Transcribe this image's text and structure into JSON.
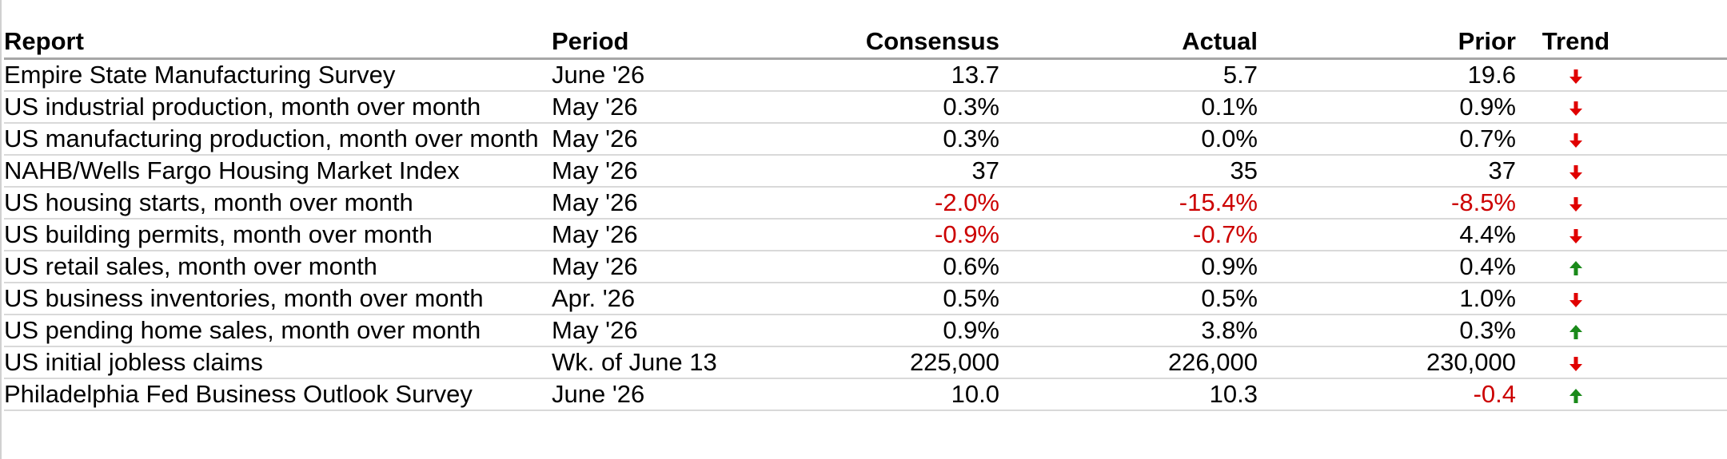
{
  "table": {
    "headers": {
      "report": "Report",
      "period": "Period",
      "consensus": "Consensus",
      "actual": "Actual",
      "prior": "Prior",
      "trend": "Trend"
    },
    "rows": [
      {
        "report": "Empire State Manufacturing Survey",
        "period": "June '26",
        "consensus": "13.7",
        "actual": "5.7",
        "prior": "19.6",
        "trend": "down"
      },
      {
        "report": "US industrial production, month over month",
        "period": "May '26",
        "consensus": "0.3%",
        "actual": "0.1%",
        "prior": "0.9%",
        "trend": "down"
      },
      {
        "report": "US manufacturing production, month over month",
        "period": "May '26",
        "consensus": "0.3%",
        "actual": "0.0%",
        "prior": "0.7%",
        "trend": "down"
      },
      {
        "report": "NAHB/Wells Fargo Housing Market Index",
        "period": "May '26",
        "consensus": "37",
        "actual": "35",
        "prior": "37",
        "trend": "down"
      },
      {
        "report": "US housing starts, month over month",
        "period": "May '26",
        "consensus": "-2.0%",
        "actual": "-15.4%",
        "prior": "-8.5%",
        "trend": "down"
      },
      {
        "report": "US building permits, month over month",
        "period": "May '26",
        "consensus": "-0.9%",
        "actual": "-0.7%",
        "prior": "4.4%",
        "trend": "down"
      },
      {
        "report": "US retail sales, month over month",
        "period": "May '26",
        "consensus": "0.6%",
        "actual": "0.9%",
        "prior": "0.4%",
        "trend": "up"
      },
      {
        "report": "US business inventories, month over month",
        "period": "Apr. '26",
        "consensus": "0.5%",
        "actual": "0.5%",
        "prior": "1.0%",
        "trend": "down"
      },
      {
        "report": "US pending home sales, month over month",
        "period": "May '26",
        "consensus": "0.9%",
        "actual": "3.8%",
        "prior": "0.3%",
        "trend": "up"
      },
      {
        "report": "US initial jobless claims",
        "period": "Wk. of June 13",
        "consensus": "225,000",
        "actual": "226,000",
        "prior": "230,000",
        "trend": "down"
      },
      {
        "report": "Philadelphia Fed Business Outlook Survey",
        "period": "June '26",
        "consensus": "10.0",
        "actual": "10.3",
        "prior": "-0.4",
        "trend": "up"
      }
    ]
  },
  "colors": {
    "negative_value": "#cc0000",
    "trend_down": "#e00000",
    "trend_up": "#1a8a1a",
    "header_rule": "#a6a6a6",
    "row_rule": "#d9d9d9"
  },
  "icons": {
    "down": "arrow-down-icon",
    "up": "arrow-up-icon"
  }
}
